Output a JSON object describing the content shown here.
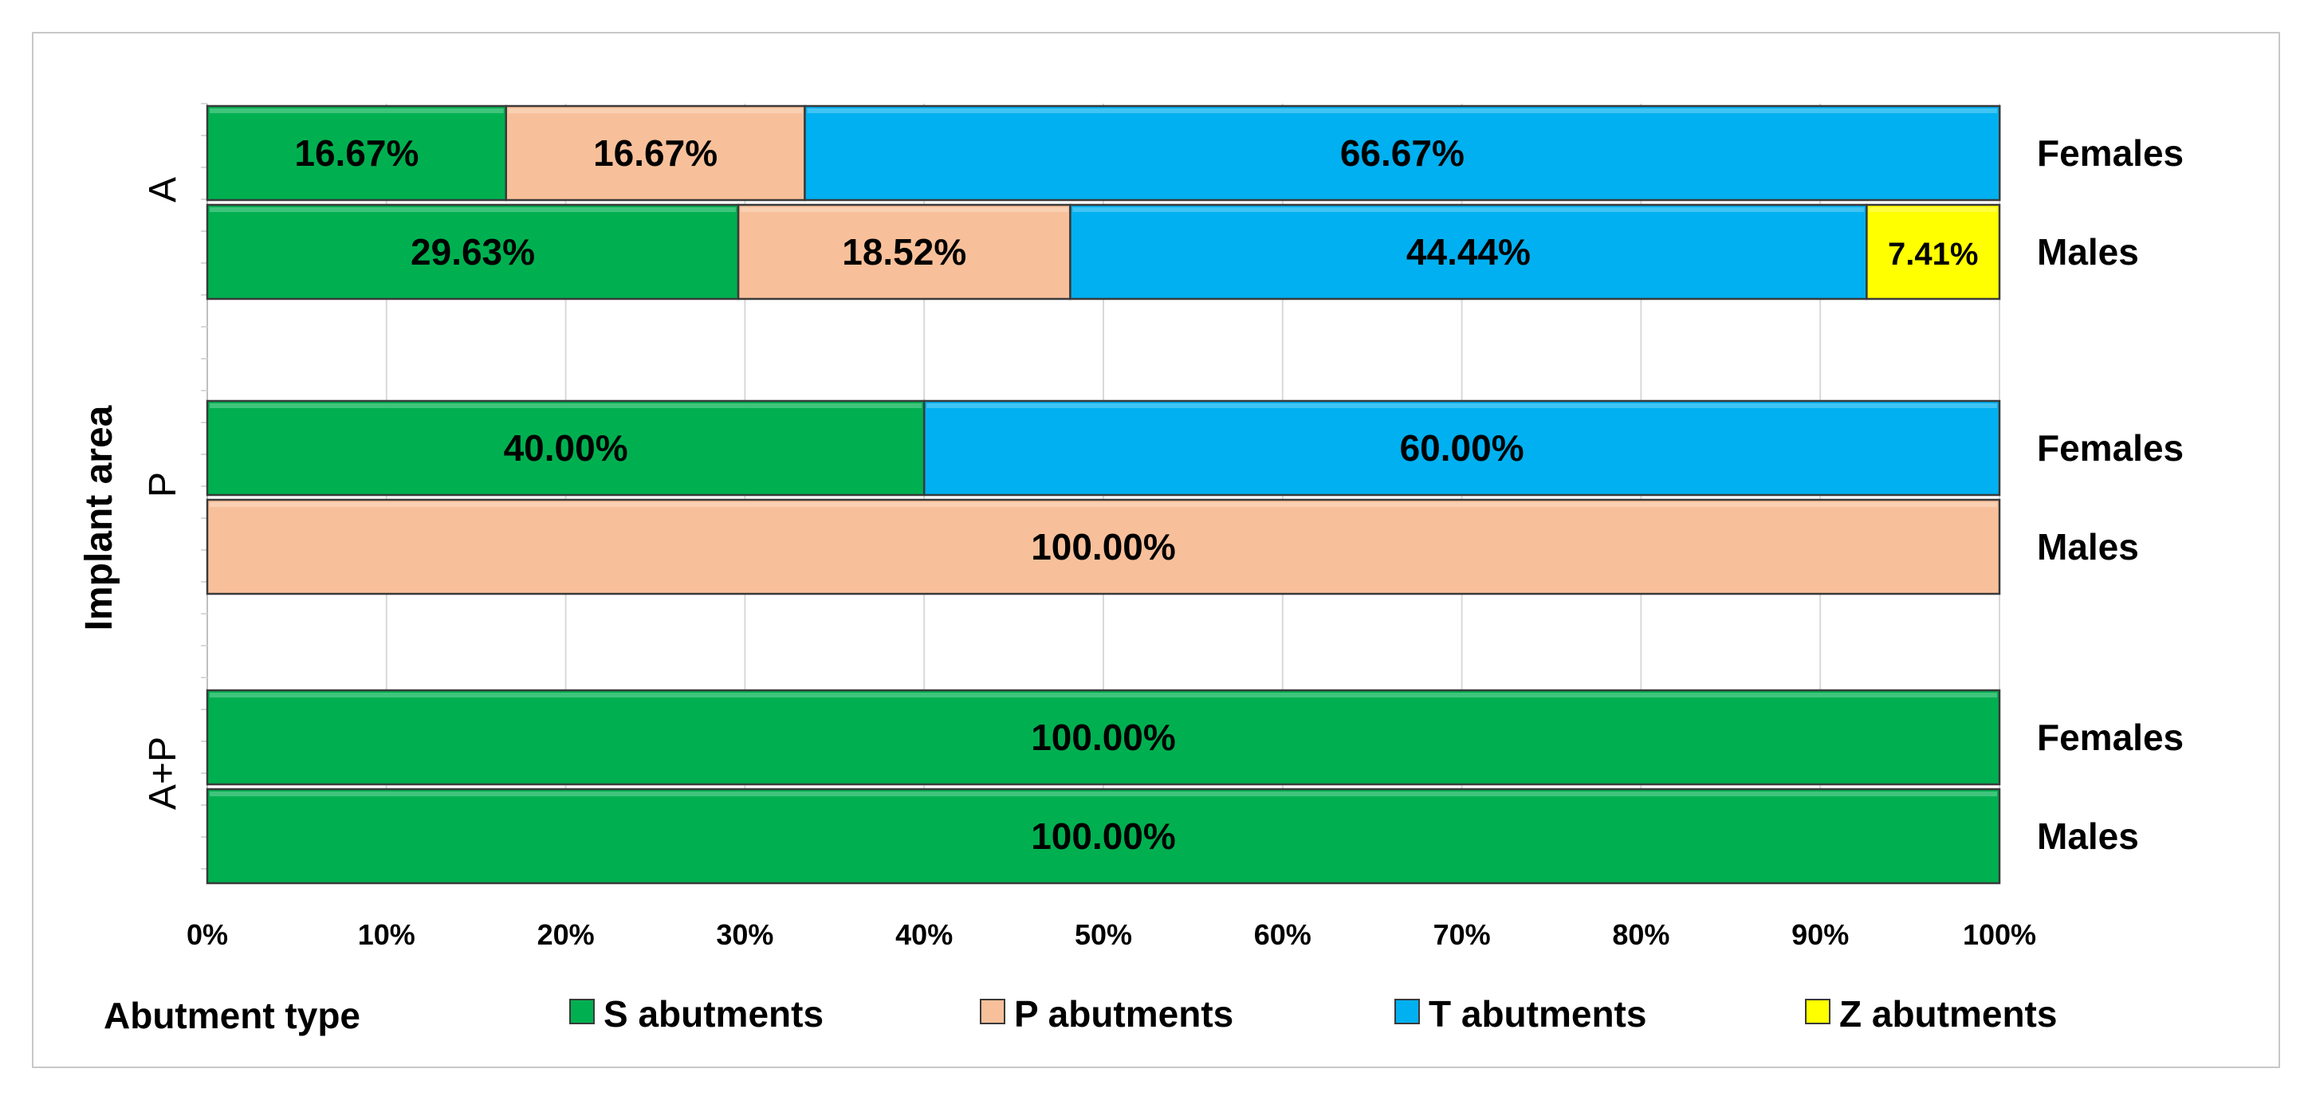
{
  "chart_data": {
    "type": "bar",
    "orientation": "horizontal",
    "stacked": "percent",
    "title": "",
    "ylabel": "Implant area",
    "xlabel": "",
    "xlim": [
      0,
      100
    ],
    "x_ticks": [
      "0%",
      "10%",
      "20%",
      "30%",
      "40%",
      "50%",
      "60%",
      "70%",
      "80%",
      "90%",
      "100%"
    ],
    "grid": "vertical",
    "legend_title": "Abutment type",
    "legend_position": "bottom",
    "colors": {
      "S abutments": "#00b050",
      "P abutments": "#f8c09a",
      "T abutments": "#00b0f0",
      "Z abutments": "#ffff00"
    },
    "series": [
      {
        "name": "S abutments",
        "color": "#00b050"
      },
      {
        "name": "P abutments",
        "color": "#f8c09a"
      },
      {
        "name": "T abutments",
        "color": "#00b0f0"
      },
      {
        "name": "Z abutments",
        "color": "#ffff00"
      }
    ],
    "groups": [
      {
        "name": "A",
        "bars": [
          {
            "label": "Females",
            "segments": [
              {
                "series": "S abutments",
                "value": 16.67,
                "text": "16.67%"
              },
              {
                "series": "P abutments",
                "value": 16.67,
                "text": "16.67%"
              },
              {
                "series": "T abutments",
                "value": 66.67,
                "text": "66.67%"
              }
            ]
          },
          {
            "label": "Males",
            "segments": [
              {
                "series": "S abutments",
                "value": 29.63,
                "text": "29.63%"
              },
              {
                "series": "P abutments",
                "value": 18.52,
                "text": "18.52%"
              },
              {
                "series": "T abutments",
                "value": 44.44,
                "text": "44.44%"
              },
              {
                "series": "Z abutments",
                "value": 7.41,
                "text": "7.41%"
              }
            ]
          }
        ]
      },
      {
        "name": "P",
        "bars": [
          {
            "label": "Females",
            "segments": [
              {
                "series": "S abutments",
                "value": 40.0,
                "text": "40.00%"
              },
              {
                "series": "T abutments",
                "value": 60.0,
                "text": "60.00%"
              }
            ]
          },
          {
            "label": "Males",
            "segments": [
              {
                "series": "P abutments",
                "value": 100.0,
                "text": "100.00%"
              }
            ]
          }
        ]
      },
      {
        "name": "A+P",
        "bars": [
          {
            "label": "Females",
            "segments": [
              {
                "series": "S abutments",
                "value": 100.0,
                "text": "100.00%"
              }
            ]
          },
          {
            "label": "Males",
            "segments": [
              {
                "series": "S abutments",
                "value": 100.0,
                "text": "100.00%"
              }
            ]
          }
        ]
      }
    ]
  }
}
